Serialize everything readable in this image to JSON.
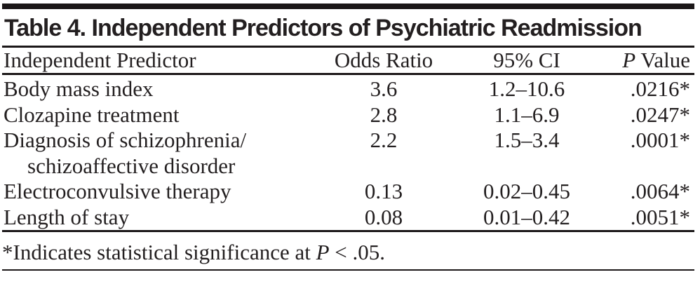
{
  "title": "Table 4. Independent Predictors of Psychiatric Readmission",
  "table": {
    "headers": {
      "predictor": "Independent Predictor",
      "odds_ratio": "Odds Ratio",
      "ci": "95% CI",
      "p_italic": "P",
      "p_rest": " Value"
    },
    "rows": [
      {
        "predictor": "Body mass index",
        "odds_ratio": "3.6",
        "ci": "1.2–10.6",
        "p_value": ".0216*"
      },
      {
        "predictor": "Clozapine treatment",
        "odds_ratio": "2.8",
        "ci": "1.1–6.9",
        "p_value": ".0247*"
      },
      {
        "predictor": "Diagnosis of schizophrenia/",
        "predictor_line2": "schizoaffective disorder",
        "odds_ratio": "2.2",
        "ci": "1.5–3.4",
        "p_value": ".0001*"
      },
      {
        "predictor": "Electroconvulsive therapy",
        "odds_ratio": "0.13",
        "ci": "0.02–0.45",
        "p_value": ".0064*"
      },
      {
        "predictor": "Length of stay",
        "odds_ratio": "0.08",
        "ci": "0.01–0.42",
        "p_value": ".0051*"
      }
    ]
  },
  "footnote": {
    "prefix": "*Indicates statistical significance at ",
    "p_symbol": "P",
    "suffix": " < .05."
  },
  "colors": {
    "ink": "#231f20",
    "rule": "#1b1718",
    "background": "#ffffff"
  }
}
